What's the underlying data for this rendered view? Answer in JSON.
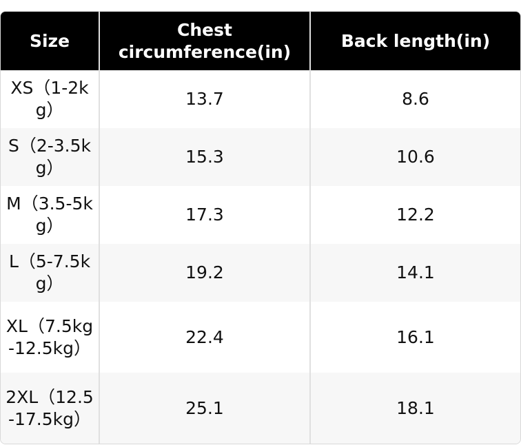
{
  "table": {
    "header": [
      "Size",
      "Chest circumference(in)",
      "Back length(in)"
    ],
    "rows": [
      [
        "XS（1-2kg）",
        13.7,
        8.6
      ],
      [
        "S（2-3.5kg）",
        15.3,
        10.6
      ],
      [
        "M（3.5-5kg）",
        17.3,
        12.2
      ],
      [
        "L（5-7.5kg）",
        19.2,
        14.1
      ],
      [
        "XL（7.5kg-12.5kg）",
        22.4,
        16.1
      ],
      [
        "2XL（12.5-17.5kg）",
        25.1,
        18.1
      ]
    ]
  }
}
